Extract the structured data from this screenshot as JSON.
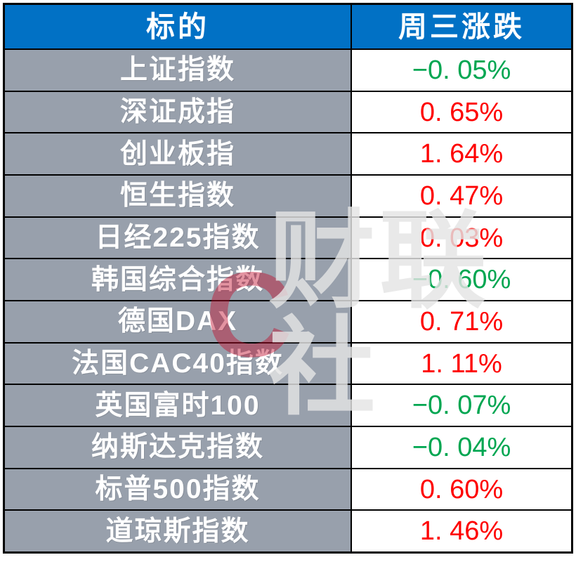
{
  "colors": {
    "header_bg": "#0171c5",
    "header_text": "#ffffff",
    "label_bg": "#98a0ac",
    "label_text": "#ffffff",
    "value_bg": "#ffffff",
    "positive_red": "#fe0000",
    "negative_green": "#00a651",
    "border": "#000000"
  },
  "table": {
    "headers": {
      "target": "标的",
      "change": "周三涨跌"
    },
    "rows": [
      {
        "label": "上证指数",
        "value": "−0. 05%",
        "value_color": "#00a651"
      },
      {
        "label": "深证成指",
        "value": "0. 65%",
        "value_color": "#fe0000"
      },
      {
        "label": "创业板指",
        "value": "1. 64%",
        "value_color": "#fe0000"
      },
      {
        "label": "恒生指数",
        "value": "0. 47%",
        "value_color": "#fe0000"
      },
      {
        "label": "日经225指数",
        "value": "0. 03%",
        "value_color": "#fe0000"
      },
      {
        "label": "韩国综合指数",
        "value": "−0. 60%",
        "value_color": "#00a651"
      },
      {
        "label": "德国DAX",
        "value": "0. 71%",
        "value_color": "#fe0000"
      },
      {
        "label": "法国CAC40指数",
        "value": "1. 11%",
        "value_color": "#fe0000"
      },
      {
        "label": "英国富时100",
        "value": "−0. 07%",
        "value_color": "#00a651"
      },
      {
        "label": "纳斯达克指数",
        "value": "−0. 04%",
        "value_color": "#00a651"
      },
      {
        "label": "标普500指数",
        "value": "0. 60%",
        "value_color": "#fe0000"
      },
      {
        "label": "道琼斯指数",
        "value": "1. 46%",
        "value_color": "#fe0000"
      }
    ]
  },
  "watermark": {
    "logo_glyph": "C",
    "text": "财联社"
  },
  "chart_data": {
    "type": "table",
    "columns": [
      "标的",
      "周三涨跌"
    ],
    "rows": [
      [
        "上证指数",
        "-0.05%"
      ],
      [
        "深证成指",
        "0.65%"
      ],
      [
        "创业板指",
        "1.64%"
      ],
      [
        "恒生指数",
        "0.47%"
      ],
      [
        "日经225指数",
        "0.03%"
      ],
      [
        "韩国综合指数",
        "-0.60%"
      ],
      [
        "德国DAX",
        "0.71%"
      ],
      [
        "法国CAC40指数",
        "1.11%"
      ],
      [
        "英国富时100",
        "-0.07%"
      ],
      [
        "纳斯达克指数",
        "-0.04%"
      ],
      [
        "标普500指数",
        "0.60%"
      ],
      [
        "道琼斯指数",
        "1.46%"
      ]
    ],
    "values_pct": [
      -0.05,
      0.65,
      1.64,
      0.47,
      0.03,
      -0.6,
      0.71,
      1.11,
      -0.07,
      -0.04,
      0.6,
      1.46
    ],
    "legend_position": "none",
    "notes": "positive values shown red, negative values shown green; 财联社 watermark overlay"
  }
}
